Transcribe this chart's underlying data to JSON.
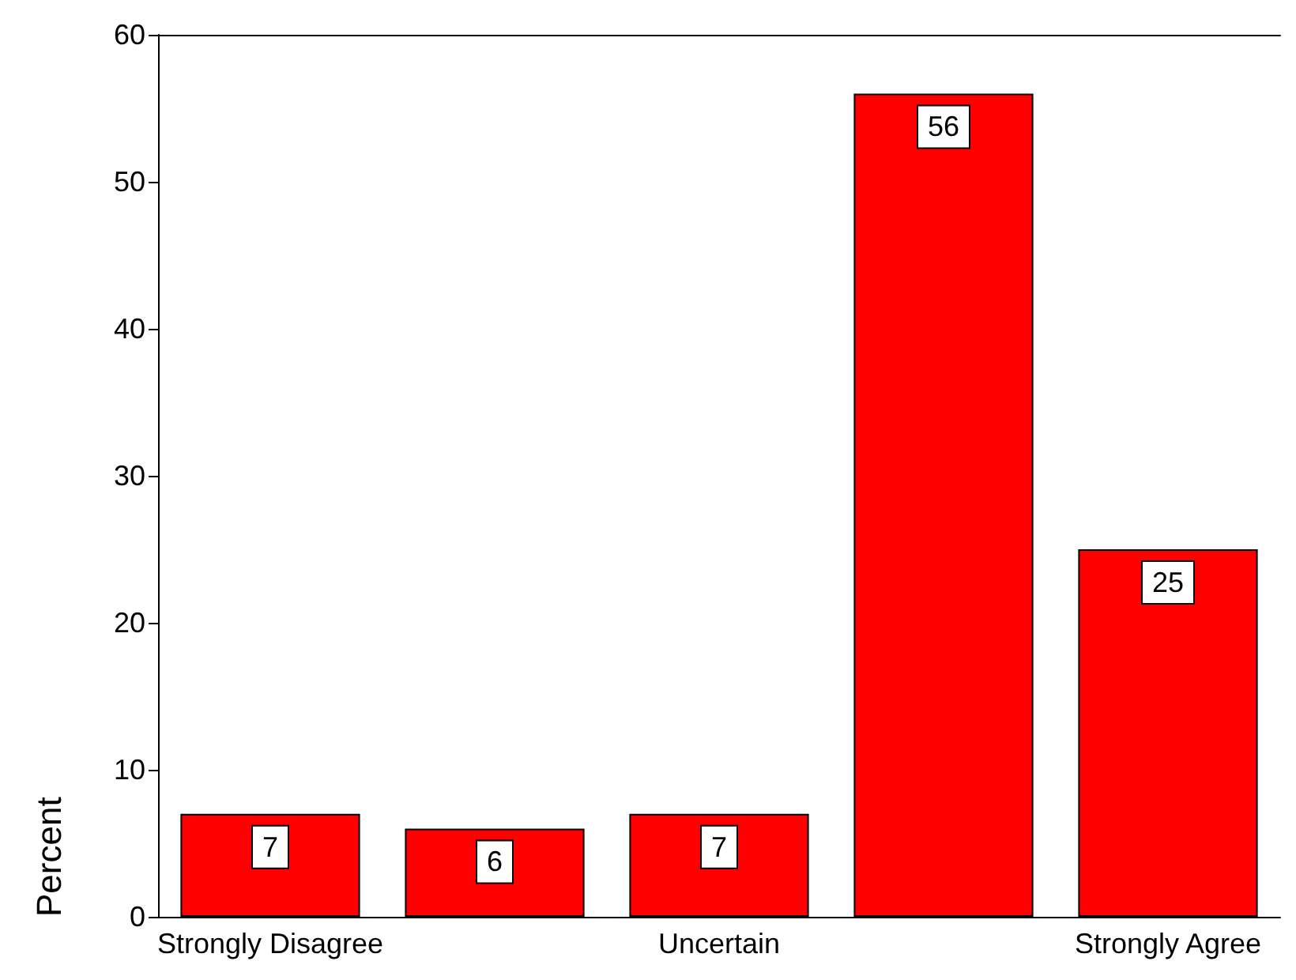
{
  "chart_data": {
    "type": "bar",
    "ylabel": "Percent",
    "categories": [
      "Strongly Disagree",
      null,
      "Uncertain",
      null,
      "Strongly Agree"
    ],
    "values": [
      7,
      6,
      7,
      56,
      25
    ],
    "color": "#ff0000",
    "ylim": [
      0,
      60
    ],
    "yticks": [
      0,
      10,
      20,
      30,
      40,
      50,
      60
    ],
    "data_labels": true,
    "grid": false
  }
}
